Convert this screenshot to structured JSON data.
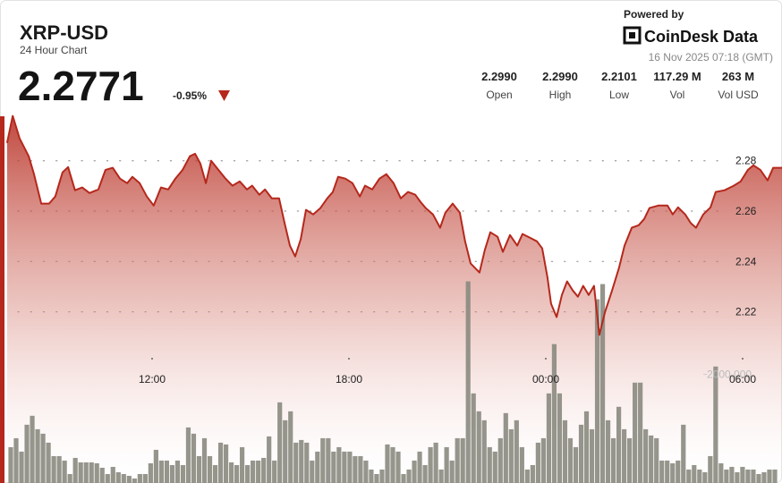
{
  "header": {
    "title": "XRP-USD",
    "subtitle": "24 Hour Chart",
    "price": "2.2771",
    "change": "-0.95%",
    "powered_by": "Powered by",
    "brand": "CoinDesk Data",
    "timestamp": "16 Nov 2025 07:18 (GMT)",
    "stats": [
      {
        "value": "2.2990",
        "label": "Open"
      },
      {
        "value": "2.2990",
        "label": "High"
      },
      {
        "value": "2.2101",
        "label": "Low"
      },
      {
        "value": "117.29 M",
        "label": "Vol"
      },
      {
        "value": "263 M",
        "label": "Vol USD"
      }
    ]
  },
  "chart_data": {
    "type": "line",
    "color": "#b5281c",
    "fill_color": "#b5281c",
    "grid": true,
    "x": [
      7.58,
      7.75,
      7.96,
      8.24,
      8.4,
      8.62,
      8.86,
      9.05,
      9.27,
      9.44,
      9.65,
      9.87,
      10.09,
      10.36,
      10.58,
      10.8,
      11.02,
      11.24,
      11.4,
      11.62,
      11.84,
      12.05,
      12.27,
      12.49,
      12.71,
      12.93,
      13.15,
      13.31,
      13.47,
      13.64,
      13.8,
      14.02,
      14.24,
      14.45,
      14.67,
      14.89,
      15.05,
      15.27,
      15.44,
      15.65,
      15.87,
      16.04,
      16.2,
      16.36,
      16.53,
      16.69,
      16.91,
      17.13,
      17.34,
      17.51,
      17.67,
      17.89,
      18.11,
      18.33,
      18.49,
      18.71,
      18.93,
      19.14,
      19.36,
      19.58,
      19.8,
      20.02,
      20.18,
      20.34,
      20.56,
      20.78,
      20.94,
      21.16,
      21.38,
      21.54,
      21.71,
      21.98,
      22.14,
      22.31,
      22.53,
      22.69,
      22.91,
      23.13,
      23.29,
      23.51,
      23.73,
      23.89,
      24.05,
      24.16,
      24.33,
      24.49,
      24.65,
      24.82,
      24.98,
      25.14,
      25.31,
      25.47,
      25.63,
      25.8,
      26.02,
      26.23,
      26.4,
      26.62,
      26.83,
      27.0,
      27.16,
      27.43,
      27.71,
      27.87,
      28.03,
      28.25,
      28.42,
      28.58,
      28.8,
      29.02,
      29.18,
      29.45,
      29.73,
      29.94,
      30.16,
      30.33,
      30.54,
      30.76,
      30.93,
      31.2
    ],
    "values": [
      2.2871,
      2.2978,
      2.2889,
      2.2818,
      2.2747,
      2.263,
      2.263,
      2.2658,
      2.2754,
      2.2775,
      2.2683,
      2.2694,
      2.2672,
      2.2686,
      2.2764,
      2.2772,
      2.2729,
      2.2711,
      2.2736,
      2.2711,
      2.2658,
      2.2622,
      2.2694,
      2.2686,
      2.2729,
      2.2764,
      2.2818,
      2.2828,
      2.2789,
      2.2711,
      2.28,
      2.2764,
      2.2729,
      2.2701,
      2.2718,
      2.2686,
      2.2701,
      2.2665,
      2.2686,
      2.2651,
      2.2651,
      2.2552,
      2.2463,
      2.242,
      2.2488,
      2.2605,
      2.2587,
      2.2612,
      2.2651,
      2.2676,
      2.2736,
      2.2729,
      2.2711,
      2.2658,
      2.2701,
      2.2686,
      2.2729,
      2.2747,
      2.2711,
      2.2651,
      2.2676,
      2.2665,
      2.2637,
      2.2612,
      2.2587,
      2.2534,
      2.2594,
      2.263,
      2.2594,
      2.248,
      2.2392,
      2.2356,
      2.2445,
      2.2516,
      2.2498,
      2.2438,
      2.2505,
      2.2463,
      2.2509,
      2.2495,
      2.248,
      2.2452,
      2.2338,
      2.2232,
      2.2179,
      2.2267,
      2.2321,
      2.2285,
      2.226,
      2.2303,
      2.2267,
      2.2303,
      2.2108,
      2.2197,
      2.2285,
      2.2374,
      2.2463,
      2.2534,
      2.2544,
      2.2569,
      2.2612,
      2.2622,
      2.2622,
      2.2587,
      2.2615,
      2.2587,
      2.2552,
      2.2534,
      2.2587,
      2.2615,
      2.2676,
      2.2683,
      2.2701,
      2.2718,
      2.2764,
      2.2782,
      2.2764,
      2.2722,
      2.2772,
      2.2772
    ],
    "xlim": [
      7.5,
      31.2
    ],
    "xticks": [
      {
        "value": 12,
        "label": "12:00"
      },
      {
        "value": 18,
        "label": "18:00"
      },
      {
        "value": 24,
        "label": "00:00"
      },
      {
        "value": 30,
        "label": "06:00"
      }
    ],
    "ylim": [
      2.152,
      2.303
    ],
    "yticks": [
      2.22,
      2.24,
      2.26,
      2.28
    ],
    "volume": {
      "color": "#8a8a80",
      "values": [
        660,
        825,
        578,
        1073,
        1238,
        990,
        908,
        743,
        495,
        495,
        413,
        165,
        462,
        380,
        380,
        380,
        363,
        281,
        165,
        297,
        198,
        165,
        132,
        83,
        165,
        165,
        363,
        611,
        413,
        413,
        330,
        413,
        330,
        1023,
        908,
        495,
        825,
        495,
        330,
        743,
        710,
        380,
        330,
        660,
        330,
        413,
        413,
        462,
        858,
        413,
        1485,
        1155,
        1320,
        743,
        792,
        743,
        413,
        578,
        825,
        825,
        578,
        660,
        578,
        578,
        495,
        495,
        413,
        248,
        165,
        248,
        710,
        660,
        578,
        165,
        248,
        413,
        578,
        330,
        660,
        743,
        248,
        660,
        413,
        825,
        825,
        3713,
        1650,
        1320,
        1155,
        660,
        578,
        825,
        1287,
        990,
        1155,
        660,
        248,
        330,
        743,
        825,
        1650,
        2558,
        1650,
        1155,
        825,
        660,
        1073,
        1320,
        990,
        3383,
        3663,
        1155,
        825,
        1403,
        990,
        825,
        1848,
        1848,
        990,
        875,
        825,
        413,
        413,
        363,
        413,
        1073,
        248,
        330,
        248,
        198,
        495,
        2145,
        363,
        248,
        297,
        198,
        297,
        248,
        248,
        165,
        198,
        248,
        248
      ],
      "ylim": [
        0,
        7000
      ],
      "yticks": [
        {
          "value": 2000,
          "label": "2000.000"
        }
      ]
    }
  }
}
